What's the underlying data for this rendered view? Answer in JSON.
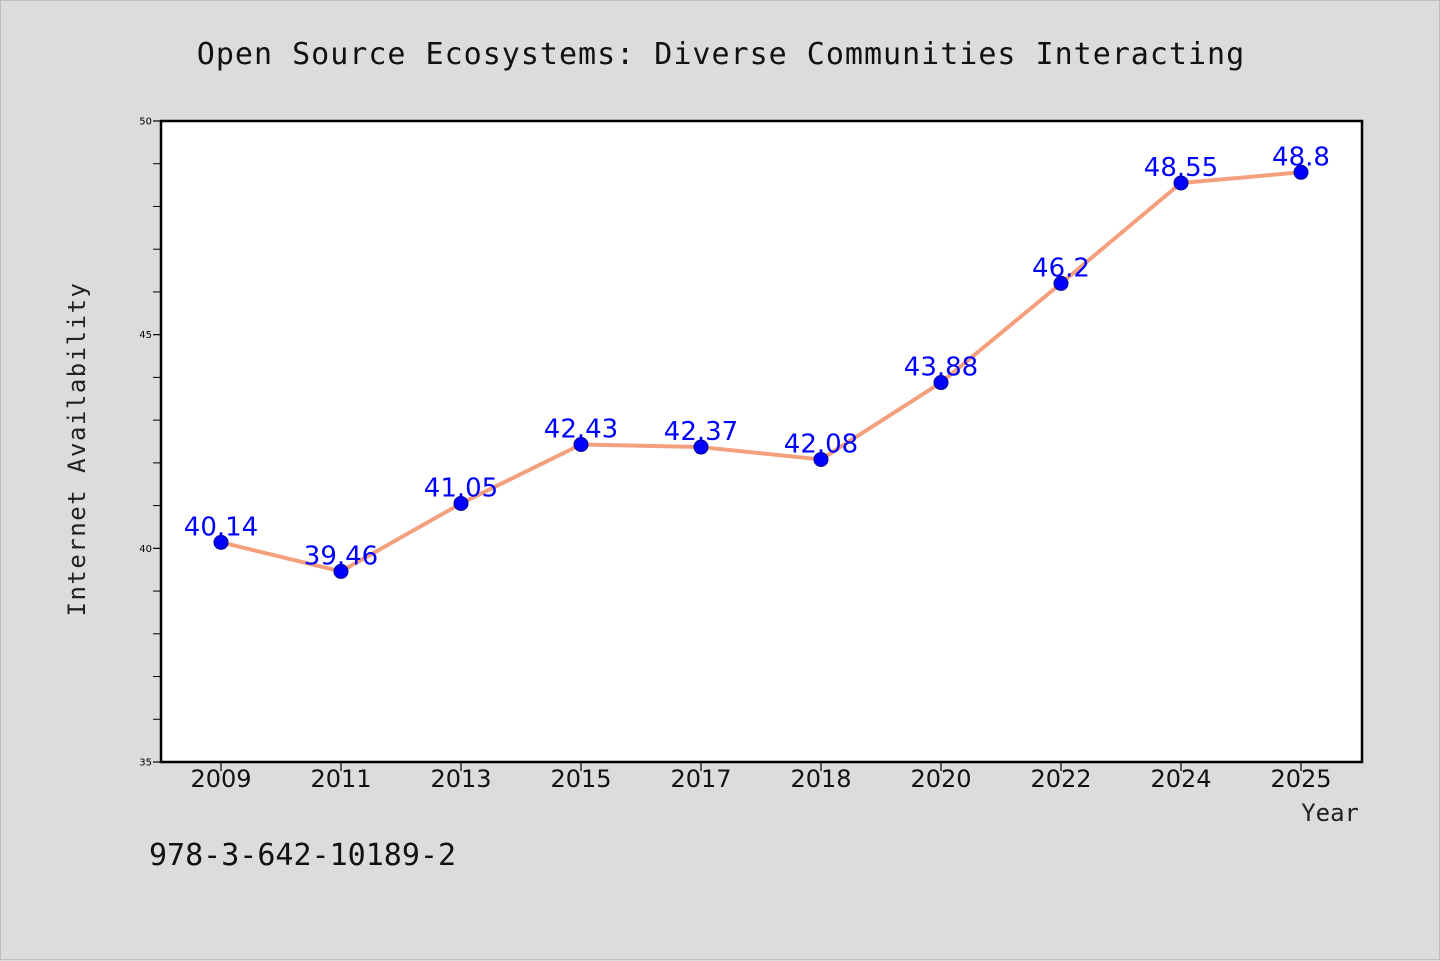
{
  "chart_data": {
    "type": "line",
    "title": "Open Source Ecosystems: Diverse Communities Interacting",
    "xlabel": "Year",
    "ylabel": "Internet Availability",
    "categories": [
      "2009",
      "2011",
      "2013",
      "2015",
      "2017",
      "2018",
      "2020",
      "2022",
      "2024",
      "2025"
    ],
    "values": [
      40.14,
      39.46,
      41.05,
      42.43,
      42.37,
      42.08,
      43.88,
      46.2,
      48.55,
      48.8
    ],
    "data_labels": [
      "40.14",
      "39.46",
      "41.05",
      "42.43",
      "42.37",
      "42.08",
      "43.88",
      "46.2",
      "48.55",
      "48.8"
    ],
    "ylim": [
      35,
      50
    ],
    "yticks": [
      35,
      40,
      45,
      50
    ],
    "grid": false,
    "legend": "none",
    "colors": {
      "line": "#f4a07d",
      "marker": "#0000ff",
      "marker_edge": "#00008b",
      "label": "#0000ff",
      "background": "#dcdcdc",
      "plot_background": "#ffffff"
    }
  },
  "footer_code": "978-3-642-10189-2"
}
